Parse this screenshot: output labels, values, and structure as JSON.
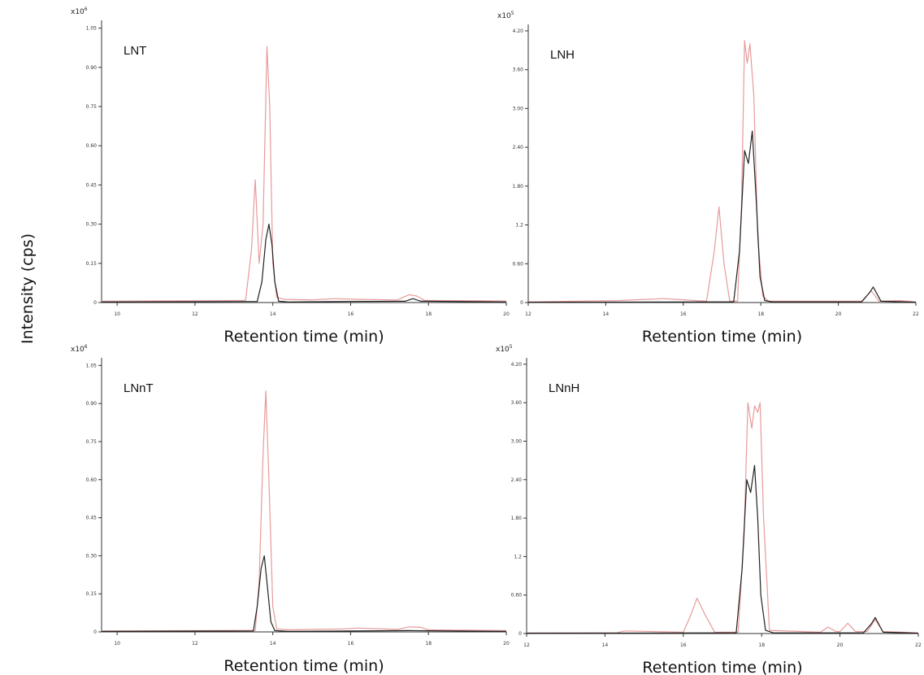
{
  "figure": {
    "ylabel": "Intensity (cps)",
    "colors": {
      "red_trace": "#e89a9a",
      "black_trace": "#222222",
      "axis": "#333333"
    }
  },
  "chart_data": [
    {
      "type": "line",
      "title": "LNT",
      "xlabel": "Retention time (min)",
      "ylabel": "Intensity (cps)",
      "y_multiplier": "x10^6",
      "xlim": [
        9.6,
        20
      ],
      "ylim": [
        0,
        1.08
      ],
      "xticks": [
        10,
        12,
        14,
        16,
        18,
        20
      ],
      "xtick_labels": [
        "10",
        "12",
        "14",
        "16",
        "18",
        "20"
      ],
      "yticks": [
        0,
        0.15,
        0.3,
        0.45,
        0.6,
        0.75,
        0.9,
        1.05
      ],
      "ytick_labels": [
        "0",
        "0.15",
        "0.30",
        "0.45",
        "0.60",
        "0.75",
        "0.90",
        "1.05"
      ],
      "series": [
        {
          "color": "#e89a9a",
          "x": [
            9.6,
            13.3,
            13.45,
            13.55,
            13.65,
            13.75,
            13.85,
            13.92,
            14.0,
            14.1,
            14.3,
            15.0,
            15.6,
            16.2,
            17.2,
            17.5,
            17.7,
            17.9,
            20.0
          ],
          "y": [
            0.005,
            0.008,
            0.2,
            0.47,
            0.15,
            0.3,
            0.98,
            0.75,
            0.15,
            0.02,
            0.012,
            0.01,
            0.015,
            0.012,
            0.01,
            0.03,
            0.025,
            0.008,
            0.006
          ]
        },
        {
          "color": "#222222",
          "x": [
            9.6,
            13.6,
            13.72,
            13.82,
            13.9,
            13.98,
            14.05,
            14.15,
            14.4,
            16.0,
            17.4,
            17.6,
            17.8,
            20.0
          ],
          "y": [
            0.002,
            0.004,
            0.08,
            0.24,
            0.3,
            0.22,
            0.08,
            0.005,
            0.002,
            0.004,
            0.005,
            0.015,
            0.005,
            0.002
          ]
        }
      ]
    },
    {
      "type": "line",
      "title": "LNH",
      "xlabel": "Retention time (min)",
      "ylabel": "Intensity (cps)",
      "y_multiplier": "x10^5",
      "xlim": [
        12,
        22
      ],
      "ylim": [
        0,
        4.3
      ],
      "xticks": [
        12,
        14,
        16,
        18,
        20,
        22
      ],
      "xtick_labels": [
        "12",
        "14",
        "16",
        "18",
        "20",
        "22"
      ],
      "yticks": [
        0,
        0.6,
        1.2,
        1.8,
        2.4,
        3.0,
        3.6,
        4.2
      ],
      "ytick_labels": [
        "0",
        "0.60",
        "1.2",
        "1.80",
        "2.40",
        "3.00",
        "3.60",
        "4.20"
      ],
      "series": [
        {
          "color": "#e89a9a",
          "x": [
            12.0,
            14.3,
            15.5,
            16.6,
            16.8,
            16.92,
            17.05,
            17.2,
            17.4,
            17.5,
            17.58,
            17.65,
            17.72,
            17.82,
            17.92,
            18.05,
            18.2,
            20.6,
            20.85,
            21.05,
            21.6,
            22.0
          ],
          "y": [
            0.01,
            0.03,
            0.06,
            0.02,
            0.8,
            1.48,
            0.6,
            0.02,
            0.02,
            1.5,
            4.05,
            3.7,
            4.0,
            3.2,
            1.0,
            0.1,
            0.02,
            0.02,
            0.18,
            0.02,
            0.03,
            0.01
          ]
        },
        {
          "color": "#222222",
          "x": [
            12.0,
            17.3,
            17.45,
            17.58,
            17.68,
            17.78,
            17.88,
            17.98,
            18.1,
            18.3,
            20.6,
            20.8,
            20.9,
            21.1,
            22.0
          ],
          "y": [
            0.005,
            0.01,
            0.8,
            2.35,
            2.15,
            2.65,
            1.6,
            0.4,
            0.03,
            0.01,
            0.01,
            0.15,
            0.24,
            0.02,
            0.005
          ]
        }
      ]
    },
    {
      "type": "line",
      "title": "LNnT",
      "xlabel": "Retention time (min)",
      "ylabel": "Intensity (cps)",
      "y_multiplier": "x10^6",
      "xlim": [
        9.6,
        20
      ],
      "ylim": [
        0,
        1.08
      ],
      "xticks": [
        10,
        12,
        14,
        16,
        18,
        20
      ],
      "xtick_labels": [
        "10",
        "12",
        "14",
        "16",
        "18",
        "20"
      ],
      "yticks": [
        0,
        0.15,
        0.3,
        0.45,
        0.6,
        0.75,
        0.9,
        1.05
      ],
      "ytick_labels": [
        "0",
        "0.15",
        "0.30",
        "0.45",
        "0.60",
        "0.75",
        "0.90",
        "1.05"
      ],
      "series": [
        {
          "color": "#e89a9a",
          "x": [
            9.6,
            13.55,
            13.65,
            13.75,
            13.82,
            13.9,
            14.0,
            14.1,
            14.4,
            15.8,
            16.2,
            17.2,
            17.5,
            17.8,
            18.0,
            20.0
          ],
          "y": [
            0.004,
            0.006,
            0.2,
            0.7,
            0.95,
            0.6,
            0.1,
            0.012,
            0.008,
            0.012,
            0.015,
            0.01,
            0.02,
            0.018,
            0.008,
            0.005
          ]
        },
        {
          "color": "#222222",
          "x": [
            9.6,
            13.5,
            13.6,
            13.7,
            13.78,
            13.86,
            13.95,
            14.05,
            14.4,
            17.5,
            20.0
          ],
          "y": [
            0.002,
            0.004,
            0.1,
            0.25,
            0.3,
            0.18,
            0.04,
            0.005,
            0.002,
            0.005,
            0.002
          ]
        }
      ]
    },
    {
      "type": "line",
      "title": "LNnH",
      "xlabel": "Retention time (min)",
      "ylabel": "Intensity (cps)",
      "y_multiplier": "x10^5",
      "xlim": [
        12,
        22
      ],
      "ylim": [
        0,
        4.3
      ],
      "xticks": [
        12,
        14,
        16,
        18,
        20,
        22
      ],
      "xtick_labels": [
        "12",
        "14",
        "16",
        "18",
        "20",
        "22"
      ],
      "yticks": [
        0,
        0.6,
        1.2,
        1.8,
        2.4,
        3.0,
        3.6,
        4.2
      ],
      "ytick_labels": [
        "0",
        "0.60",
        "1.2",
        "1.80",
        "2.40",
        "3.00",
        "3.60",
        "4.20"
      ],
      "series": [
        {
          "color": "#e89a9a",
          "x": [
            12.0,
            14.3,
            14.5,
            16.0,
            16.2,
            16.35,
            16.55,
            16.8,
            17.4,
            17.55,
            17.65,
            17.75,
            17.82,
            17.9,
            17.96,
            18.05,
            18.2,
            19.5,
            19.7,
            19.9,
            20.0,
            20.2,
            20.4,
            20.7,
            20.9,
            21.1,
            21.6,
            22.0
          ],
          "y": [
            0.01,
            0.01,
            0.04,
            0.02,
            0.3,
            0.55,
            0.3,
            0.02,
            0.02,
            1.5,
            3.6,
            3.2,
            3.55,
            3.45,
            3.6,
            1.8,
            0.05,
            0.02,
            0.1,
            0.03,
            0.03,
            0.16,
            0.03,
            0.03,
            0.22,
            0.03,
            0.02,
            0.01
          ]
        },
        {
          "color": "#222222",
          "x": [
            12.0,
            17.35,
            17.5,
            17.62,
            17.72,
            17.82,
            17.9,
            17.98,
            18.1,
            18.3,
            20.6,
            20.8,
            20.9,
            21.1,
            22.0
          ],
          "y": [
            0.005,
            0.01,
            1.0,
            2.4,
            2.2,
            2.62,
            1.8,
            0.6,
            0.05,
            0.01,
            0.01,
            0.15,
            0.25,
            0.02,
            0.005
          ]
        }
      ]
    }
  ]
}
